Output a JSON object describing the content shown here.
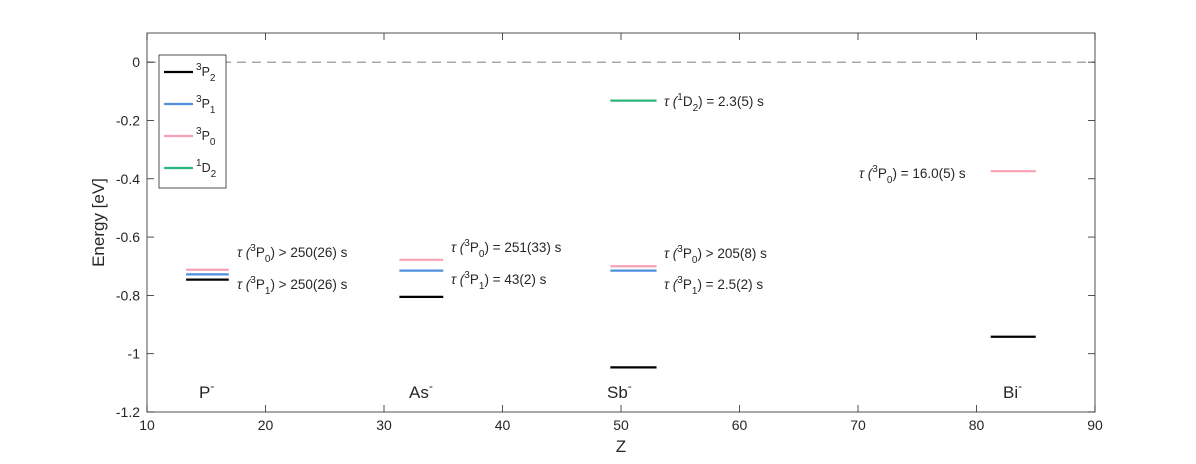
{
  "chart_data": {
    "type": "scatter",
    "xlabel": "Z",
    "ylabel": "Energy [eV]",
    "xlim": [
      10,
      90
    ],
    "ylim": [
      -1.2,
      0.1
    ],
    "xticks": [
      "10",
      "20",
      "30",
      "40",
      "50",
      "60",
      "70",
      "80",
      "90"
    ],
    "yticks": [
      "0",
      "-0.2",
      "-0.4",
      "-0.6",
      "-0.8",
      "-1",
      "-1.2"
    ],
    "grid": false,
    "legend_position": "top-left",
    "reference_line": {
      "y": 0,
      "style": "dashed"
    },
    "series": [
      {
        "key": "3P2",
        "sup": "3",
        "base": "P",
        "sub": "2",
        "color": "#000000"
      },
      {
        "key": "3P1",
        "sup": "3",
        "base": "P",
        "sub": "1",
        "color": "#4f8fdc"
      },
      {
        "key": "3P0",
        "sup": "3",
        "base": "P",
        "sub": "0",
        "color": "#f7a1b4"
      },
      {
        "key": "1D2",
        "sup": "1",
        "base": "D",
        "sub": "2",
        "color": "#2bb47c"
      }
    ],
    "ions": [
      {
        "label": "P",
        "charge": "-",
        "x_range": [
          13.3,
          16.9
        ],
        "levels": {
          "3P2": -0.746,
          "3P1": -0.728,
          "3P0": -0.712
        }
      },
      {
        "label": "As",
        "charge": "-",
        "x_range": [
          31.3,
          35.0
        ],
        "levels": {
          "3P2": -0.805,
          "3P1": -0.715,
          "3P0": -0.678
        }
      },
      {
        "label": "Sb",
        "charge": "-",
        "x_range": [
          49.1,
          53.0
        ],
        "levels": {
          "3P2": -1.047,
          "3P1": -0.715,
          "3P0": -0.7,
          "1D2": -0.132
        }
      },
      {
        "label": "Bi",
        "charge": "-",
        "x_range": [
          81.2,
          85.0
        ],
        "levels": {
          "3P2": -0.942,
          "3P0": -0.374
        }
      }
    ],
    "annotations": [
      {
        "ion": "P",
        "sup": "3",
        "base": "P",
        "sub": "0",
        "rel": ">",
        "value": "250(26) s"
      },
      {
        "ion": "P",
        "sup": "3",
        "base": "P",
        "sub": "1",
        "rel": ">",
        "value": "250(26) s"
      },
      {
        "ion": "As",
        "sup": "3",
        "base": "P",
        "sub": "0",
        "rel": "=",
        "value": "251(33) s"
      },
      {
        "ion": "As",
        "sup": "3",
        "base": "P",
        "sub": "1",
        "rel": "=",
        "value": "43(2) s"
      },
      {
        "ion": "Sb",
        "sup": "1",
        "base": "D",
        "sub": "2",
        "rel": "=",
        "value": "2.3(5) s"
      },
      {
        "ion": "Sb",
        "sup": "3",
        "base": "P",
        "sub": "0",
        "rel": ">",
        "value": "205(8) s"
      },
      {
        "ion": "Sb",
        "sup": "3",
        "base": "P",
        "sub": "1",
        "rel": "=",
        "value": "2.5(2) s"
      },
      {
        "ion": "Bi",
        "sup": "3",
        "base": "P",
        "sub": "0",
        "rel": "=",
        "value": "16.0(5) s"
      }
    ]
  }
}
